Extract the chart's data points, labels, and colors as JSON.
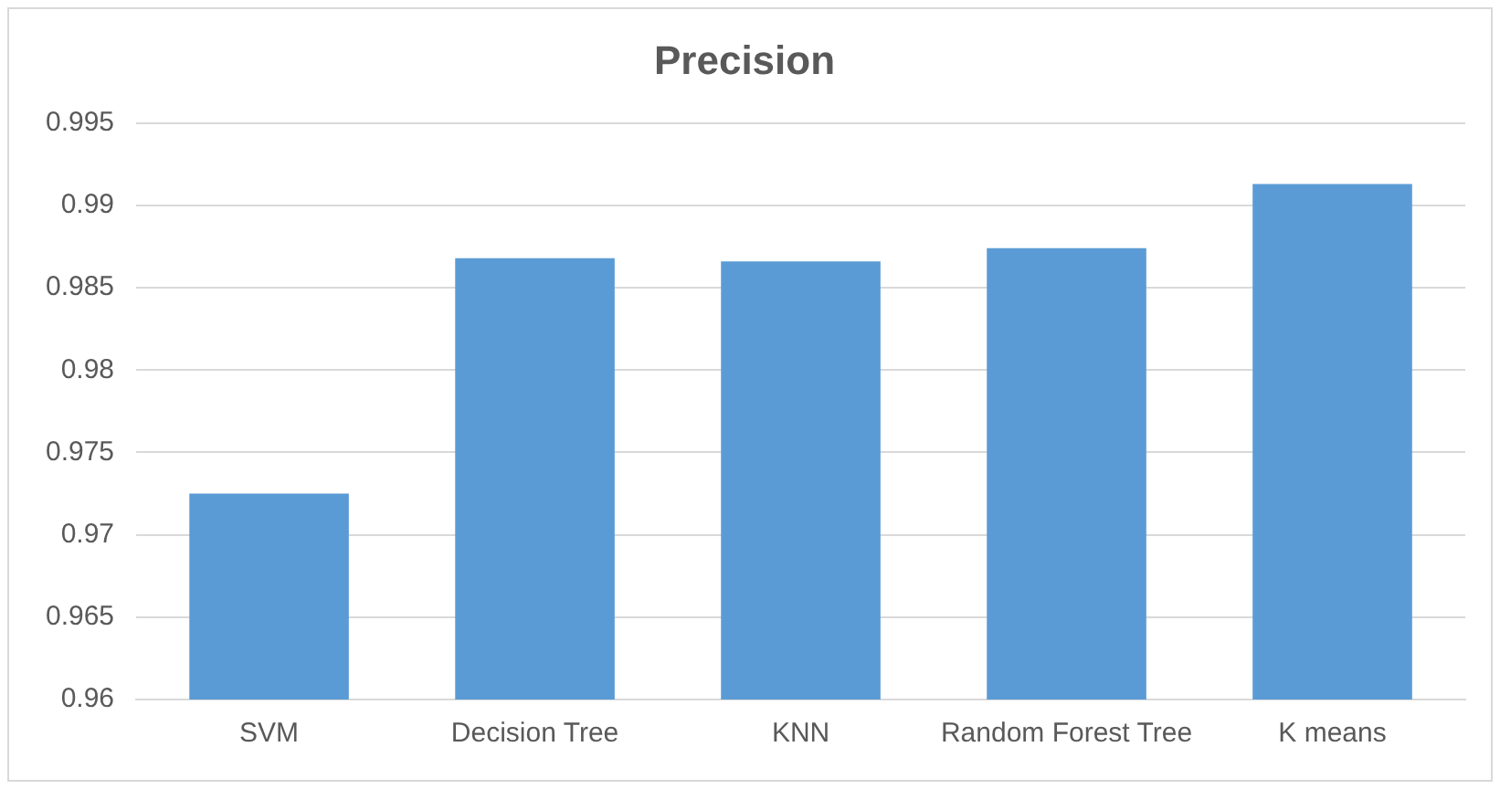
{
  "chart_data": {
    "type": "bar",
    "title": "Precision",
    "categories": [
      "SVM",
      "Decision Tree",
      "KNN",
      "Random Forest Tree",
      "K means"
    ],
    "values": [
      0.9725,
      0.9868,
      0.9866,
      0.9874,
      0.9913
    ],
    "color": "#5b9bd5",
    "ylim": [
      0.96,
      0.995
    ],
    "yticks": [
      0.96,
      0.965,
      0.97,
      0.975,
      0.98,
      0.985,
      0.99,
      0.995
    ],
    "grid": "y",
    "legend": false
  }
}
